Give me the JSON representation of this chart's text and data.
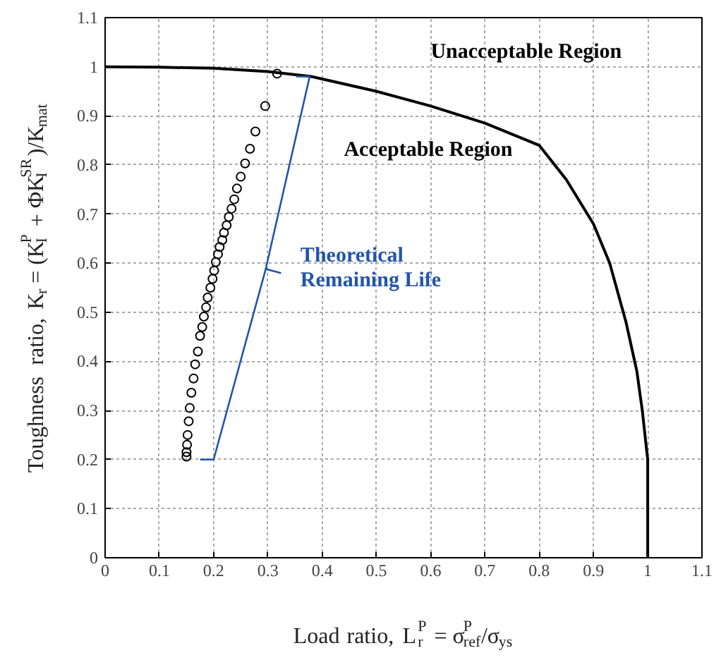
{
  "chart_data": {
    "type": "scatter",
    "xlabel": "Load ratio, L$_{r}$$^{P}$ = σ$^{P}$$_{ref}$/σ$_{ys}$",
    "ylabel": "Toughness ratio, K$_{r}$ = (K$_{I}$$^{P}$ + ΦK$_{I}$$^{SR}$)/K$_{mat}$",
    "xlim": [
      0,
      1.1
    ],
    "ylim": [
      0,
      1.1
    ],
    "xticks": [
      0,
      0.1,
      0.2,
      0.3,
      0.4,
      0.5,
      0.6,
      0.7,
      0.8,
      0.9,
      1,
      1.1
    ],
    "yticks": [
      0,
      0.1,
      0.2,
      0.3,
      0.4,
      0.5,
      0.6,
      0.7,
      0.8,
      0.9,
      1,
      1.1
    ],
    "grid": true,
    "series": [
      {
        "type": "line",
        "color": "#000000",
        "marker": "none",
        "x": [
          0,
          0.1,
          0.2,
          0.3,
          0.38,
          0.5,
          0.6,
          0.7,
          0.8,
          0.85,
          0.9,
          0.93,
          0.96,
          0.98,
          0.99,
          1.0,
          1.0
        ],
        "values": [
          1.0,
          0.999,
          0.997,
          0.99,
          0.98,
          0.95,
          0.92,
          0.885,
          0.84,
          0.77,
          0.68,
          0.6,
          0.48,
          0.38,
          0.3,
          0.2,
          0
        ]
      },
      {
        "color": "#000000",
        "marker": "circle",
        "x": [
          0.317,
          0.295,
          0.277,
          0.267,
          0.258,
          0.25,
          0.243,
          0.238,
          0.233,
          0.228,
          0.224,
          0.219,
          0.216,
          0.211,
          0.208,
          0.204,
          0.201,
          0.198,
          0.194,
          0.189,
          0.186,
          0.182,
          0.179,
          0.175,
          0.171,
          0.166,
          0.163,
          0.159,
          0.156,
          0.154,
          0.152,
          0.151,
          0.15,
          0.15
        ],
        "values": [
          0.986,
          0.92,
          0.868,
          0.833,
          0.803,
          0.776,
          0.752,
          0.73,
          0.711,
          0.694,
          0.677,
          0.662,
          0.647,
          0.633,
          0.618,
          0.602,
          0.585,
          0.568,
          0.55,
          0.53,
          0.51,
          0.491,
          0.47,
          0.452,
          0.42,
          0.394,
          0.365,
          0.336,
          0.305,
          0.278,
          0.25,
          0.23,
          0.215,
          0.206
        ]
      },
      {
        "type": "line",
        "color": "#2255aa",
        "marker": "none",
        "x": [
          0.175,
          0.2,
          0.296,
          0.323,
          0.296,
          0.377,
          0.352
        ],
        "values": [
          0.2,
          0.2,
          0.588,
          0.58,
          0.588,
          0.98,
          0.98
        ]
      }
    ],
    "annotations": [
      "Unacceptable Region",
      "Acceptable Region",
      {
        "text": "Theoretical Remaining Life",
        "x": 0.3,
        "y": 0.59
      }
    ]
  }
}
